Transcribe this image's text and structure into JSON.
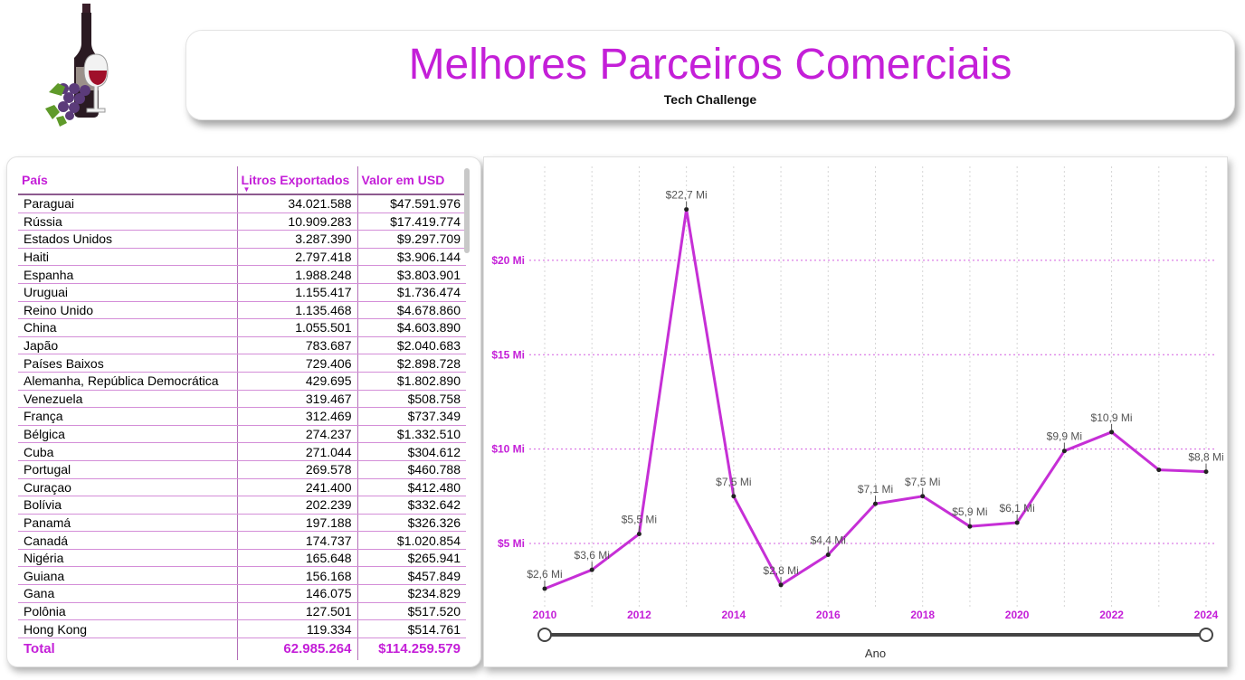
{
  "header": {
    "title": "Melhores Parceiros Comerciais",
    "subtitle": "Tech Challenge"
  },
  "table": {
    "columns": [
      "País",
      "Litros Exportados",
      "Valor em USD"
    ],
    "rows": [
      [
        "Paraguai",
        "34.021.588",
        "$47.591.976"
      ],
      [
        "Rússia",
        "10.909.283",
        "$17.419.774"
      ],
      [
        "Estados Unidos",
        "3.287.390",
        "$9.297.709"
      ],
      [
        "Haiti",
        "2.797.418",
        "$3.906.144"
      ],
      [
        "Espanha",
        "1.988.248",
        "$3.803.901"
      ],
      [
        "Uruguai",
        "1.155.417",
        "$1.736.474"
      ],
      [
        "Reino Unido",
        "1.135.468",
        "$4.678.860"
      ],
      [
        "China",
        "1.055.501",
        "$4.603.890"
      ],
      [
        "Japão",
        "783.687",
        "$2.040.683"
      ],
      [
        "Países Baixos",
        "729.406",
        "$2.898.728"
      ],
      [
        "Alemanha, República Democrática",
        "429.695",
        "$1.802.890"
      ],
      [
        "Venezuela",
        "319.467",
        "$508.758"
      ],
      [
        "França",
        "312.469",
        "$737.349"
      ],
      [
        "Bélgica",
        "274.237",
        "$1.332.510"
      ],
      [
        "Cuba",
        "271.044",
        "$304.612"
      ],
      [
        "Portugal",
        "269.578",
        "$460.788"
      ],
      [
        "Curaçao",
        "241.400",
        "$412.480"
      ],
      [
        "Bolívia",
        "202.239",
        "$332.642"
      ],
      [
        "Panamá",
        "197.188",
        "$326.326"
      ],
      [
        "Canadá",
        "174.737",
        "$1.020.854"
      ],
      [
        "Nigéria",
        "165.648",
        "$265.941"
      ],
      [
        "Guiana",
        "156.168",
        "$457.849"
      ],
      [
        "Gana",
        "146.075",
        "$234.829"
      ],
      [
        "Polônia",
        "127.501",
        "$517.520"
      ],
      [
        "Hong Kong",
        "119.334",
        "$514.761"
      ]
    ],
    "total": [
      "Total",
      "62.985.264",
      "$114.259.579"
    ]
  },
  "chart_data": {
    "type": "line",
    "x": [
      2010,
      2011,
      2012,
      2013,
      2014,
      2015,
      2016,
      2017,
      2018,
      2019,
      2020,
      2021,
      2022,
      2023,
      2024
    ],
    "values": [
      2.6,
      3.6,
      5.5,
      22.7,
      7.5,
      2.8,
      4.4,
      7.1,
      7.5,
      5.9,
      6.1,
      9.9,
      10.9,
      8.9,
      8.8
    ],
    "data_labels": [
      "$2,6 Mi",
      "$3,6 Mi",
      "$5,5 Mi",
      "$22,7 Mi",
      "$7,5 Mi",
      "$2,8 Mi",
      "$4,4 Mi",
      "$7,1 Mi",
      "$7,5 Mi",
      "$5,9 Mi",
      "$6,1 Mi",
      "$9,9 Mi",
      "$10,9 Mi",
      "",
      "$8,8 Mi"
    ],
    "y_ticks": [
      5,
      10,
      15,
      20
    ],
    "y_tick_labels": [
      "$5 Mi",
      "$10 Mi",
      "$15 Mi",
      "$20 Mi"
    ],
    "x_ticks": [
      2010,
      2012,
      2014,
      2016,
      2018,
      2020,
      2022,
      2024
    ],
    "x_tick_labels": [
      "2010",
      "2012",
      "2014",
      "2016",
      "2018",
      "2020",
      "2022",
      "2024"
    ],
    "xlabel": "Ano",
    "ylabel": "",
    "xlim": [
      2010,
      2024
    ],
    "ylim": [
      1.5,
      24.5
    ],
    "grid": true,
    "line_color": "#c62fd6",
    "accent_color": "#c41fd8"
  },
  "slider": {
    "range": [
      2010,
      2024
    ]
  }
}
